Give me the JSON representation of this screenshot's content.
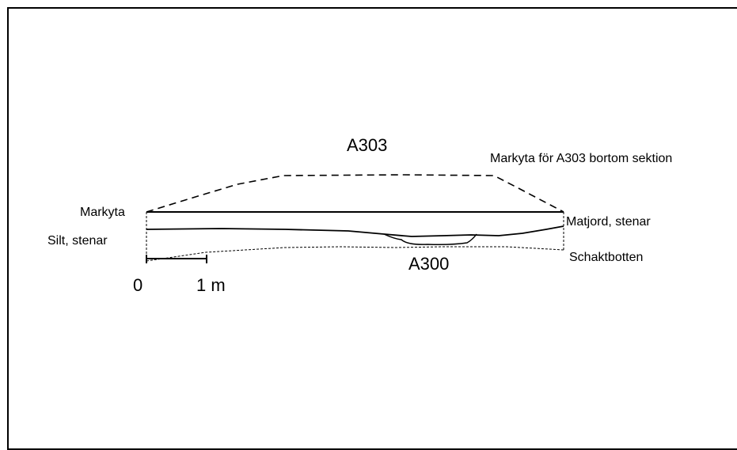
{
  "labels": {
    "feature_top": "A303",
    "feature_bottom": "A300",
    "ground_surface": "Markyta",
    "ground_beyond": "Markyta för A303 bortom sektion",
    "topsoil": "Matjord, stenar",
    "silt": "Silt, stenar",
    "trench_bottom": "Schaktbotten",
    "scale_zero": "0",
    "scale_one": "1 m"
  },
  "colors": {
    "line": "#000000",
    "background": "#ffffff"
  }
}
